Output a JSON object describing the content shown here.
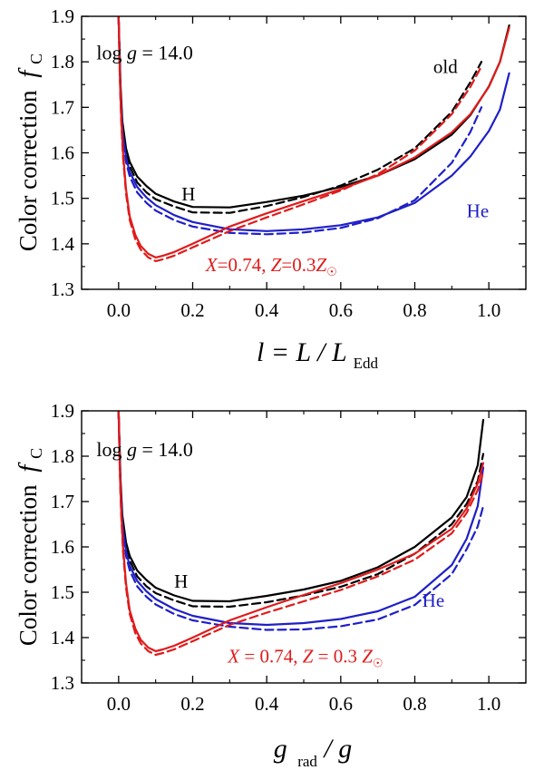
{
  "chart_data": [
    {
      "type": "line",
      "panel": "top",
      "ylabel": "Color correction",
      "ylabel_symbol": "f",
      "ylabel_sub": "C",
      "xlabel": {
        "pre": "l = L / L",
        "sub": "Edd"
      },
      "xlim": [
        -0.1,
        1.1
      ],
      "ylim": [
        1.3,
        1.9
      ],
      "xticks": [
        0.0,
        0.2,
        0.4,
        0.6,
        0.8,
        1.0
      ],
      "xtick_labels": [
        "0.0",
        "0.2",
        "0.4",
        "0.6",
        "0.8",
        "1.0"
      ],
      "yticks": [
        1.3,
        1.4,
        1.5,
        1.6,
        1.7,
        1.8,
        1.9
      ],
      "ytick_labels": [
        "1.3",
        "1.4",
        "1.5",
        "1.6",
        "1.7",
        "1.8",
        "1.9"
      ],
      "annotations": {
        "logg": {
          "text": "log g = 14.0",
          "x": -0.06,
          "y": 1.805
        },
        "H": {
          "text": "H",
          "x": 0.17,
          "y": 1.495
        },
        "He": {
          "text": "He",
          "x": 0.94,
          "y": 1.458
        },
        "old": {
          "text": "old",
          "x": 0.85,
          "y": 1.775
        },
        "composition": {
          "text": "X=0.74, Z=0.3Z☉",
          "x": 0.235,
          "y": 1.34
        }
      },
      "series": [
        {
          "name": "H",
          "style": "solid",
          "color": "#000000",
          "x": [
            0.0,
            0.005,
            0.01,
            0.02,
            0.03,
            0.05,
            0.075,
            0.1,
            0.15,
            0.2,
            0.3,
            0.4,
            0.5,
            0.6,
            0.7,
            0.8,
            0.9,
            0.95,
            1.0,
            1.03,
            1.055
          ],
          "y": [
            1.9,
            1.75,
            1.67,
            1.61,
            1.58,
            1.548,
            1.527,
            1.51,
            1.493,
            1.481,
            1.48,
            1.492,
            1.506,
            1.525,
            1.55,
            1.586,
            1.64,
            1.683,
            1.746,
            1.8,
            1.88
          ]
        },
        {
          "name": "H old",
          "style": "dashed",
          "color": "#000000",
          "x": [
            0.0,
            0.005,
            0.01,
            0.02,
            0.03,
            0.05,
            0.075,
            0.1,
            0.15,
            0.2,
            0.3,
            0.4,
            0.5,
            0.6,
            0.7,
            0.8,
            0.9,
            0.95,
            0.98
          ],
          "y": [
            1.9,
            1.74,
            1.66,
            1.6,
            1.57,
            1.535,
            1.513,
            1.498,
            1.482,
            1.469,
            1.468,
            1.483,
            1.503,
            1.528,
            1.563,
            1.61,
            1.69,
            1.755,
            1.8
          ]
        },
        {
          "name": "He",
          "style": "solid",
          "color": "#1f1fc8",
          "x": [
            0.0,
            0.005,
            0.01,
            0.02,
            0.03,
            0.05,
            0.075,
            0.1,
            0.15,
            0.2,
            0.3,
            0.4,
            0.5,
            0.6,
            0.7,
            0.8,
            0.9,
            0.95,
            1.0,
            1.03,
            1.055
          ],
          "y": [
            1.9,
            1.73,
            1.65,
            1.59,
            1.558,
            1.525,
            1.502,
            1.485,
            1.463,
            1.448,
            1.432,
            1.428,
            1.432,
            1.441,
            1.458,
            1.49,
            1.55,
            1.592,
            1.648,
            1.695,
            1.775
          ]
        },
        {
          "name": "He old",
          "style": "dashed",
          "color": "#1f1fc8",
          "x": [
            0.0,
            0.005,
            0.01,
            0.02,
            0.03,
            0.05,
            0.075,
            0.1,
            0.15,
            0.2,
            0.3,
            0.4,
            0.5,
            0.6,
            0.7,
            0.8,
            0.9,
            0.95,
            0.98
          ],
          "y": [
            1.9,
            1.72,
            1.64,
            1.58,
            1.548,
            1.513,
            1.49,
            1.473,
            1.452,
            1.438,
            1.424,
            1.421,
            1.425,
            1.435,
            1.456,
            1.496,
            1.578,
            1.646,
            1.7
          ]
        },
        {
          "name": "X=0.74, Z=0.3Z☉",
          "style": "solid",
          "color": "#e01b1b",
          "x": [
            0.0,
            0.003,
            0.007,
            0.012,
            0.02,
            0.03,
            0.045,
            0.06,
            0.08,
            0.1,
            0.12,
            0.15,
            0.2,
            0.3,
            0.4,
            0.5,
            0.6,
            0.7,
            0.8,
            0.9,
            0.95,
            1.0,
            1.03,
            1.055
          ],
          "y": [
            1.9,
            1.78,
            1.68,
            1.6,
            1.52,
            1.46,
            1.42,
            1.395,
            1.378,
            1.37,
            1.374,
            1.382,
            1.4,
            1.438,
            1.467,
            1.494,
            1.52,
            1.55,
            1.59,
            1.645,
            1.685,
            1.745,
            1.8,
            1.875
          ]
        },
        {
          "name": "X=0.74, Z=0.3Z☉ old",
          "style": "dashed",
          "color": "#e01b1b",
          "x": [
            0.0,
            0.003,
            0.007,
            0.012,
            0.02,
            0.03,
            0.045,
            0.06,
            0.08,
            0.1,
            0.12,
            0.15,
            0.2,
            0.3,
            0.4,
            0.5,
            0.6,
            0.7,
            0.8,
            0.9,
            0.95,
            0.98
          ],
          "y": [
            1.9,
            1.77,
            1.67,
            1.59,
            1.51,
            1.452,
            1.41,
            1.387,
            1.37,
            1.362,
            1.366,
            1.374,
            1.392,
            1.428,
            1.458,
            1.487,
            1.517,
            1.553,
            1.605,
            1.685,
            1.745,
            1.79
          ]
        }
      ]
    },
    {
      "type": "line",
      "panel": "bottom",
      "ylabel": "Color correction",
      "ylabel_symbol": "f",
      "ylabel_sub": "C",
      "xlabel": {
        "pre": "g",
        "sub": "rad",
        "post": " / g"
      },
      "xlim": [
        -0.1,
        1.1
      ],
      "ylim": [
        1.3,
        1.9
      ],
      "xticks": [
        0.0,
        0.2,
        0.4,
        0.6,
        0.8,
        1.0
      ],
      "xtick_labels": [
        "0.0",
        "0.2",
        "0.4",
        "0.6",
        "0.8",
        "1.0"
      ],
      "yticks": [
        1.3,
        1.4,
        1.5,
        1.6,
        1.7,
        1.8,
        1.9
      ],
      "ytick_labels": [
        "1.3",
        "1.4",
        "1.5",
        "1.6",
        "1.7",
        "1.8",
        "1.9"
      ],
      "annotations": {
        "logg": {
          "text": "log g = 14.0",
          "x": -0.06,
          "y": 1.8
        },
        "H": {
          "text": "H",
          "x": 0.15,
          "y": 1.51
        },
        "He": {
          "text": "He",
          "x": 0.82,
          "y": 1.468
        },
        "composition": {
          "text": "X = 0.74, Z = 0.3 Z☉",
          "x": 0.295,
          "y": 1.345
        }
      },
      "series": [
        {
          "name": "H",
          "style": "solid",
          "color": "#000000",
          "x": [
            0.0,
            0.005,
            0.01,
            0.02,
            0.03,
            0.05,
            0.075,
            0.1,
            0.15,
            0.2,
            0.3,
            0.4,
            0.5,
            0.6,
            0.7,
            0.8,
            0.9,
            0.94,
            0.97,
            0.985
          ],
          "y": [
            1.9,
            1.75,
            1.67,
            1.61,
            1.58,
            1.548,
            1.527,
            1.51,
            1.493,
            1.481,
            1.48,
            1.492,
            1.506,
            1.525,
            1.555,
            1.6,
            1.665,
            1.71,
            1.78,
            1.88
          ]
        },
        {
          "name": "H old",
          "style": "dashed",
          "color": "#000000",
          "x": [
            0.0,
            0.005,
            0.01,
            0.02,
            0.03,
            0.05,
            0.075,
            0.1,
            0.15,
            0.2,
            0.3,
            0.4,
            0.5,
            0.6,
            0.7,
            0.8,
            0.9,
            0.94,
            0.97,
            0.985
          ],
          "y": [
            1.9,
            1.74,
            1.66,
            1.6,
            1.57,
            1.535,
            1.513,
            1.498,
            1.482,
            1.469,
            1.468,
            1.478,
            1.493,
            1.512,
            1.54,
            1.585,
            1.65,
            1.695,
            1.745,
            1.805
          ]
        },
        {
          "name": "He",
          "style": "solid",
          "color": "#1f1fc8",
          "x": [
            0.0,
            0.005,
            0.01,
            0.02,
            0.03,
            0.05,
            0.075,
            0.1,
            0.15,
            0.2,
            0.3,
            0.4,
            0.5,
            0.6,
            0.7,
            0.8,
            0.9,
            0.94,
            0.97,
            0.985
          ],
          "y": [
            1.9,
            1.73,
            1.65,
            1.59,
            1.558,
            1.525,
            1.502,
            1.485,
            1.463,
            1.448,
            1.432,
            1.428,
            1.432,
            1.441,
            1.458,
            1.49,
            1.56,
            1.618,
            1.69,
            1.775
          ]
        },
        {
          "name": "He old",
          "style": "dashed",
          "color": "#1f1fc8",
          "x": [
            0.0,
            0.005,
            0.01,
            0.02,
            0.03,
            0.05,
            0.075,
            0.1,
            0.15,
            0.2,
            0.3,
            0.4,
            0.5,
            0.6,
            0.7,
            0.8,
            0.9,
            0.94,
            0.97,
            0.985
          ],
          "y": [
            1.9,
            1.72,
            1.64,
            1.58,
            1.548,
            1.513,
            1.49,
            1.473,
            1.452,
            1.438,
            1.424,
            1.417,
            1.418,
            1.425,
            1.44,
            1.472,
            1.54,
            1.595,
            1.645,
            1.69
          ]
        },
        {
          "name": "X = 0.74, Z = 0.3 Z☉",
          "style": "solid",
          "color": "#e01b1b",
          "x": [
            0.0,
            0.003,
            0.007,
            0.012,
            0.02,
            0.03,
            0.045,
            0.06,
            0.08,
            0.1,
            0.12,
            0.15,
            0.2,
            0.3,
            0.4,
            0.5,
            0.6,
            0.7,
            0.8,
            0.9,
            0.94,
            0.97,
            0.985
          ],
          "y": [
            1.9,
            1.78,
            1.68,
            1.6,
            1.52,
            1.46,
            1.42,
            1.395,
            1.378,
            1.37,
            1.374,
            1.382,
            1.4,
            1.438,
            1.467,
            1.494,
            1.52,
            1.55,
            1.585,
            1.64,
            1.685,
            1.74,
            1.785
          ]
        },
        {
          "name": "X = 0.74, Z = 0.3 Z☉ old",
          "style": "dashed",
          "color": "#e01b1b",
          "x": [
            0.0,
            0.003,
            0.007,
            0.012,
            0.02,
            0.03,
            0.045,
            0.06,
            0.08,
            0.1,
            0.12,
            0.15,
            0.2,
            0.3,
            0.4,
            0.5,
            0.6,
            0.7,
            0.8,
            0.9,
            0.94,
            0.97,
            0.985
          ],
          "y": [
            1.9,
            1.77,
            1.67,
            1.59,
            1.51,
            1.452,
            1.41,
            1.387,
            1.37,
            1.362,
            1.366,
            1.374,
            1.392,
            1.428,
            1.455,
            1.48,
            1.505,
            1.535,
            1.572,
            1.63,
            1.675,
            1.725,
            1.765
          ]
        }
      ]
    }
  ]
}
